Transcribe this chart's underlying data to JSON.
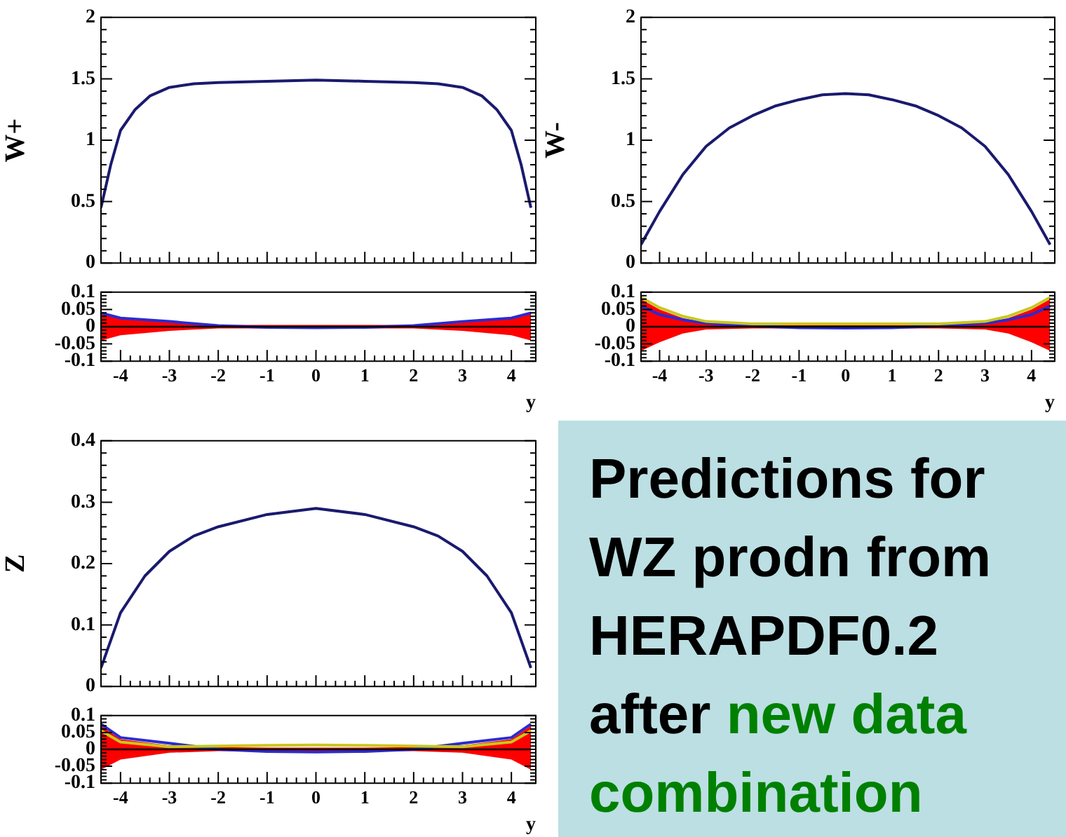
{
  "chart_data": [
    {
      "type": "line",
      "ylabel": "W+",
      "xlim": [
        -4.4,
        4.5
      ],
      "xticks": [
        -4,
        -3,
        -2,
        -1,
        0,
        1,
        2,
        3,
        4
      ],
      "ylim": [
        0,
        2
      ],
      "yticks": [
        0,
        0.5,
        1,
        1.5,
        2
      ],
      "tick_labels": "y",
      "grid": false,
      "legend": false,
      "x": [
        -4.4,
        -4.2,
        -4,
        -3.7,
        -3.4,
        -3,
        -2.5,
        -2,
        -1,
        0,
        1,
        2,
        2.5,
        3,
        3.4,
        3.7,
        4,
        4.2,
        4.4
      ],
      "series": [
        {
          "color": "#1a1a6e",
          "values": [
            0.45,
            0.8,
            1.08,
            1.25,
            1.36,
            1.43,
            1.46,
            1.47,
            1.48,
            1.49,
            1.48,
            1.47,
            1.46,
            1.43,
            1.36,
            1.25,
            1.08,
            0.8,
            0.45
          ]
        }
      ]
    },
    {
      "type": "line",
      "xlabel": "y",
      "xlim": [
        -4.4,
        4.5
      ],
      "xticks": [
        -4,
        -3,
        -2,
        -1,
        0,
        1,
        2,
        3,
        4
      ],
      "ylim": [
        -0.1,
        0.1
      ],
      "yticks": [
        -0.1,
        -0.05,
        0,
        0.05,
        0.1
      ],
      "grid": false,
      "legend": false,
      "x": [
        -4.4,
        -4,
        -3,
        -2,
        -1,
        0,
        1,
        2,
        3,
        4,
        4.4
      ],
      "series": [
        {
          "color": "#000000",
          "values": [
            0,
            0,
            0,
            0,
            0,
            0,
            0,
            0,
            0,
            0,
            0
          ],
          "upper": [
            0.04,
            0.025,
            0.012,
            0.005,
            0.005,
            0.005,
            0.005,
            0.005,
            0.012,
            0.025,
            0.04
          ],
          "lower": [
            -0.04,
            -0.025,
            -0.012,
            -0.005,
            -0.005,
            -0.005,
            -0.005,
            -0.005,
            -0.012,
            -0.025,
            -0.04
          ]
        },
        {
          "color": "#2b2bd0",
          "values": [
            0.04,
            0.025,
            0.015,
            0.003,
            -0.002,
            -0.003,
            -0.002,
            0.003,
            0.015,
            0.025,
            0.04
          ]
        }
      ]
    },
    {
      "type": "line",
      "ylabel": "W-",
      "xlim": [
        -4.4,
        4.5
      ],
      "xticks": [
        -4,
        -3,
        -2,
        -1,
        0,
        1,
        2,
        3,
        4
      ],
      "ylim": [
        0,
        2
      ],
      "yticks": [
        0,
        0.5,
        1,
        1.5,
        2
      ],
      "tick_labels": "y",
      "grid": false,
      "legend": false,
      "x": [
        -4.4,
        -4,
        -3.5,
        -3,
        -2.5,
        -2,
        -1.5,
        -1,
        -0.5,
        0,
        0.5,
        1,
        1.5,
        2,
        2.5,
        3,
        3.5,
        4,
        4.4
      ],
      "series": [
        {
          "color": "#1a1a6e",
          "values": [
            0.15,
            0.42,
            0.72,
            0.95,
            1.1,
            1.2,
            1.28,
            1.33,
            1.37,
            1.38,
            1.37,
            1.33,
            1.28,
            1.2,
            1.1,
            0.95,
            0.72,
            0.42,
            0.15
          ]
        }
      ]
    },
    {
      "type": "line",
      "xlabel": "y",
      "xlim": [
        -4.4,
        4.5
      ],
      "xticks": [
        -4,
        -3,
        -2,
        -1,
        0,
        1,
        2,
        3,
        4
      ],
      "ylim": [
        -0.1,
        0.1
      ],
      "yticks": [
        -0.1,
        -0.05,
        0,
        0.05,
        0.1
      ],
      "grid": false,
      "legend": false,
      "x": [
        -4.4,
        -4,
        -3.5,
        -3,
        -2,
        -1,
        0,
        1,
        2,
        3,
        3.5,
        4,
        4.4
      ],
      "series": [
        {
          "color": "#000000",
          "values": [
            0,
            0,
            0,
            0,
            0,
            0,
            0,
            0,
            0,
            0,
            0,
            0,
            0
          ],
          "upper": [
            0.08,
            0.05,
            0.025,
            0.01,
            0.005,
            0.005,
            0.005,
            0.005,
            0.005,
            0.01,
            0.025,
            0.05,
            0.08
          ],
          "lower": [
            -0.07,
            -0.045,
            -0.02,
            -0.008,
            -0.005,
            -0.005,
            -0.005,
            -0.005,
            -0.005,
            -0.008,
            -0.02,
            -0.045,
            -0.07
          ]
        },
        {
          "color": "#c8c81e",
          "values": [
            0.085,
            0.055,
            0.03,
            0.015,
            0.008,
            0.008,
            0.008,
            0.008,
            0.008,
            0.015,
            0.03,
            0.055,
            0.085
          ]
        },
        {
          "color": "#2b2bd0",
          "values": [
            0.06,
            0.035,
            0.02,
            0.01,
            0.002,
            -0.003,
            -0.004,
            -0.003,
            0.002,
            0.01,
            0.02,
            0.035,
            0.06
          ]
        }
      ]
    },
    {
      "type": "line",
      "ylabel": "Z",
      "xlim": [
        -4.4,
        4.5
      ],
      "xticks": [
        -4,
        -3,
        -2,
        -1,
        0,
        1,
        2,
        3,
        4
      ],
      "ylim": [
        0,
        0.4
      ],
      "yticks": [
        0,
        0.1,
        0.2,
        0.3,
        0.4
      ],
      "tick_labels": "y",
      "grid": false,
      "legend": false,
      "x": [
        -4.4,
        -4,
        -3.5,
        -3,
        -2.5,
        -2,
        -1,
        0,
        1,
        2,
        2.5,
        3,
        3.5,
        4,
        4.4
      ],
      "series": [
        {
          "color": "#1a1a6e",
          "values": [
            0.03,
            0.12,
            0.18,
            0.22,
            0.245,
            0.26,
            0.28,
            0.29,
            0.28,
            0.26,
            0.245,
            0.22,
            0.18,
            0.12,
            0.03
          ]
        }
      ]
    },
    {
      "type": "line",
      "xlabel": "y",
      "xlim": [
        -4.4,
        4.5
      ],
      "xticks": [
        -4,
        -3,
        -2,
        -1,
        0,
        1,
        2,
        3,
        4
      ],
      "ylim": [
        -0.1,
        0.1
      ],
      "yticks": [
        -0.1,
        -0.05,
        0,
        0.05,
        0.1
      ],
      "grid": false,
      "legend": false,
      "x": [
        -4.4,
        -4,
        -3,
        -2,
        -1,
        0,
        1,
        2,
        3,
        4,
        4.4
      ],
      "series": [
        {
          "color": "#000000",
          "values": [
            0,
            0,
            0,
            0,
            0,
            0,
            0,
            0,
            0,
            0,
            0
          ],
          "upper": [
            0.07,
            0.03,
            0.012,
            0.007,
            0.005,
            0.005,
            0.005,
            0.007,
            0.012,
            0.03,
            0.07
          ],
          "lower": [
            -0.06,
            -0.03,
            -0.01,
            -0.005,
            -0.005,
            -0.005,
            -0.005,
            -0.005,
            -0.01,
            -0.03,
            -0.06
          ]
        },
        {
          "color": "#c8c81e",
          "values": [
            0.055,
            0.022,
            0.008,
            0.01,
            0.012,
            0.013,
            0.012,
            0.01,
            0.008,
            0.022,
            0.055
          ]
        },
        {
          "color": "#2b2bd0",
          "values": [
            0.075,
            0.035,
            0.018,
            0,
            -0.006,
            -0.008,
            -0.006,
            0,
            0.018,
            0.035,
            0.075
          ]
        }
      ]
    },
    {
      "type": "other",
      "title": "Predictions for WZ prodn from HERAPDF0.2 after",
      "subtitle": "new data combination"
    }
  ]
}
